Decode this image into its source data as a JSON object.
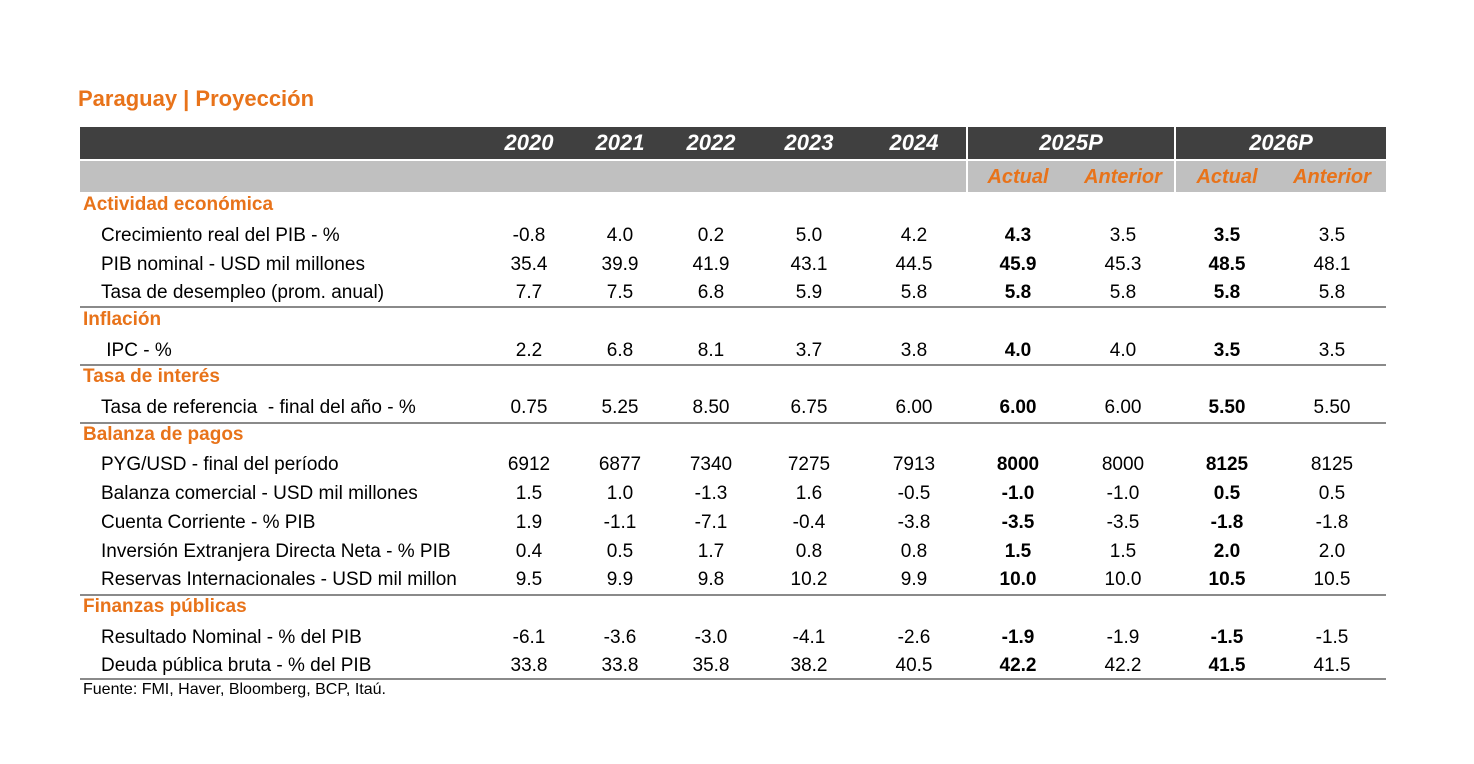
{
  "title": "Paraguay | Proyección",
  "columns": {
    "years": [
      "2020",
      "2021",
      "2022",
      "2023",
      "2024"
    ],
    "proj": [
      "2025P",
      "2026P"
    ],
    "sub": [
      "Actual",
      "Anterior",
      "Actual",
      "Anterior"
    ]
  },
  "sections": [
    {
      "name": "Actividad económica",
      "rows": [
        {
          "label": "Crecimiento real del PIB - %",
          "values": [
            "-0.8",
            "4.0",
            "0.2",
            "5.0",
            "4.2",
            "4.3",
            "3.5",
            "3.5",
            "3.5"
          ]
        },
        {
          "label": "PIB nominal - USD mil millones",
          "values": [
            "35.4",
            "39.9",
            "41.9",
            "43.1",
            "44.5",
            "45.9",
            "45.3",
            "48.5",
            "48.1"
          ]
        },
        {
          "label": "Tasa de desempleo (prom. anual)",
          "values": [
            "7.7",
            "7.5",
            "6.8",
            "5.9",
            "5.8",
            "5.8",
            "5.8",
            "5.8",
            "5.8"
          ]
        }
      ]
    },
    {
      "name": "Inflación",
      "rows": [
        {
          "label": " IPC - %",
          "values": [
            "2.2",
            "6.8",
            "8.1",
            "3.7",
            "3.8",
            "4.0",
            "4.0",
            "3.5",
            "3.5"
          ]
        }
      ]
    },
    {
      "name": "Tasa de interés",
      "rows": [
        {
          "label": "Tasa de referencia  - final del año - %",
          "values": [
            "0.75",
            "5.25",
            "8.50",
            "6.75",
            "6.00",
            "6.00",
            "6.00",
            "5.50",
            "5.50"
          ]
        }
      ]
    },
    {
      "name": "Balanza de pagos",
      "rows": [
        {
          "label": "PYG/USD - final del período",
          "values": [
            "6912",
            "6877",
            "7340",
            "7275",
            "7913",
            "8000",
            "8000",
            "8125",
            "8125"
          ]
        },
        {
          "label": "Balanza comercial - USD mil millones",
          "values": [
            "1.5",
            "1.0",
            "-1.3",
            "1.6",
            "-0.5",
            "-1.0",
            "-1.0",
            "0.5",
            "0.5"
          ]
        },
        {
          "label": "Cuenta Corriente - % PIB",
          "values": [
            "1.9",
            "-1.1",
            "-7.1",
            "-0.4",
            "-3.8",
            "-3.5",
            "-3.5",
            "-1.8",
            "-1.8"
          ]
        },
        {
          "label": "Inversión Extranjera Directa Neta - % PIB",
          "values": [
            "0.4",
            "0.5",
            "1.7",
            "0.8",
            "0.8",
            "1.5",
            "1.5",
            "2.0",
            "2.0"
          ]
        },
        {
          "label": "Reservas Internacionales - USD mil millon",
          "values": [
            "9.5",
            "9.9",
            "9.8",
            "10.2",
            "9.9",
            "10.0",
            "10.0",
            "10.5",
            "10.5"
          ]
        }
      ]
    },
    {
      "name": "Finanzas públicas",
      "rows": [
        {
          "label": "Resultado Nominal - % del PIB",
          "values": [
            "-6.1",
            "-3.6",
            "-3.0",
            "-4.1",
            "-2.6",
            "-1.9",
            "-1.9",
            "-1.5",
            "-1.5"
          ]
        },
        {
          "label": "Deuda pública bruta - % del PIB",
          "values": [
            "33.8",
            "33.8",
            "35.8",
            "38.2",
            "40.5",
            "42.2",
            "42.2",
            "41.5",
            "41.5"
          ]
        }
      ]
    }
  ],
  "source": "Fuente: FMI, Haver, Bloomberg, BCP, Itaú.",
  "colors": {
    "accent": "#e8731a",
    "header_dark": "#404040",
    "header_light": "#c0c0c0"
  }
}
